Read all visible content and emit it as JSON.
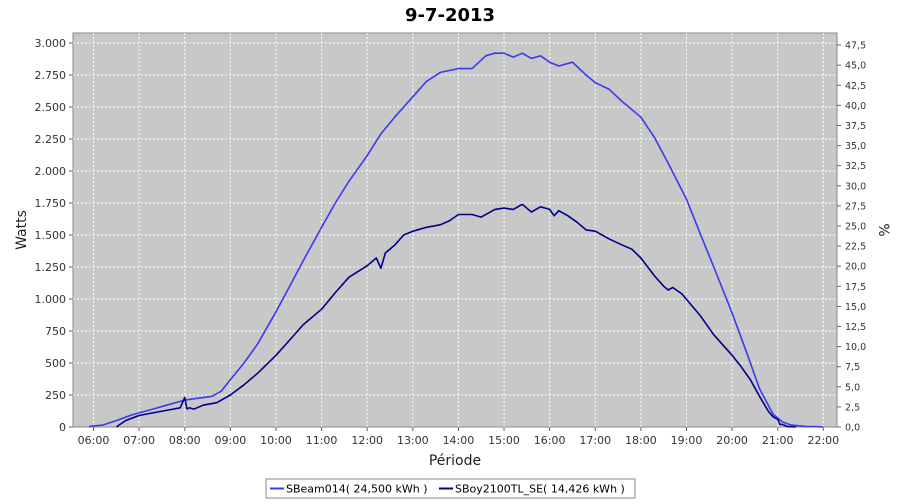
{
  "chart_data": {
    "type": "line",
    "title": "9-7-2013",
    "xlabel": "Période",
    "ylabel": "Watts",
    "y2label": "%",
    "x_ticks": [
      "06:00",
      "07:00",
      "08:00",
      "09:00",
      "10:00",
      "11:00",
      "12:00",
      "13:00",
      "14:00",
      "15:00",
      "16:00",
      "17:00",
      "18:00",
      "19:00",
      "20:00",
      "21:00",
      "22:00"
    ],
    "xlim_hours": [
      5.55,
      22.3
    ],
    "ylim": [
      0,
      3000
    ],
    "y_ticks": [
      0,
      250,
      500,
      750,
      1000,
      1250,
      1500,
      1750,
      2000,
      2250,
      2500,
      2750,
      3000
    ],
    "y_tick_labels": [
      "0",
      "250",
      "500",
      "750",
      "1.000",
      "1.250",
      "1.500",
      "1.750",
      "2.000",
      "2.250",
      "2.500",
      "2.750",
      "3.000"
    ],
    "y2lim": [
      0,
      49
    ],
    "y2_ticks": [
      0,
      2.5,
      5,
      7.5,
      10,
      12.5,
      15,
      17.5,
      20,
      22.5,
      25,
      27.5,
      30,
      32.5,
      35,
      37.5,
      40,
      42.5,
      45,
      47.5
    ],
    "y2_tick_labels": [
      "0,0",
      "2,5",
      "5,0",
      "7,5",
      "10,0",
      "12,5",
      "15,0",
      "17,5",
      "20,0",
      "22,5",
      "25,0",
      "27,5",
      "30,0",
      "32,5",
      "35,0",
      "37,5",
      "40,0",
      "42,5",
      "45,0",
      "47,5"
    ],
    "grid": true,
    "legend_position": "bottom",
    "series": [
      {
        "name": "SBeam014( 24,500 kWh )",
        "color": "#3a3aee",
        "x": [
          5.9,
          6.2,
          6.5,
          6.8,
          7.0,
          7.3,
          7.6,
          8.0,
          8.3,
          8.6,
          8.8,
          9.0,
          9.3,
          9.6,
          10.0,
          10.3,
          10.6,
          11.0,
          11.3,
          11.6,
          12.0,
          12.3,
          12.6,
          13.0,
          13.3,
          13.6,
          14.0,
          14.3,
          14.6,
          14.8,
          15.0,
          15.2,
          15.4,
          15.6,
          15.8,
          16.0,
          16.2,
          16.5,
          16.8,
          17.0,
          17.3,
          17.6,
          18.0,
          18.3,
          18.6,
          19.0,
          19.3,
          19.6,
          20.0,
          20.3,
          20.6,
          20.9,
          21.1,
          21.3,
          21.6,
          21.9,
          22.0
        ],
        "y": [
          5,
          15,
          50,
          90,
          110,
          140,
          170,
          210,
          225,
          240,
          280,
          370,
          500,
          650,
          900,
          1100,
          1300,
          1560,
          1750,
          1920,
          2120,
          2290,
          2420,
          2580,
          2700,
          2770,
          2800,
          2800,
          2900,
          2920,
          2920,
          2890,
          2920,
          2880,
          2900,
          2850,
          2820,
          2850,
          2750,
          2690,
          2640,
          2540,
          2420,
          2260,
          2060,
          1780,
          1510,
          1250,
          890,
          600,
          300,
          100,
          40,
          15,
          5,
          2,
          0
        ]
      },
      {
        "name": "SBoy2100TL_SE( 14,426 kWh )",
        "color": "#00008b",
        "x": [
          6.5,
          6.7,
          7.0,
          7.3,
          7.6,
          7.9,
          8.0,
          8.05,
          8.1,
          8.2,
          8.4,
          8.7,
          9.0,
          9.3,
          9.6,
          10.0,
          10.3,
          10.6,
          11.0,
          11.3,
          11.6,
          12.0,
          12.2,
          12.3,
          12.4,
          12.6,
          12.8,
          13.0,
          13.3,
          13.6,
          13.8,
          14.0,
          14.3,
          14.5,
          14.8,
          15.0,
          15.2,
          15.4,
          15.6,
          15.8,
          16.0,
          16.1,
          16.2,
          16.4,
          16.6,
          16.8,
          17.0,
          17.3,
          17.6,
          17.8,
          18.0,
          18.3,
          18.5,
          18.6,
          18.7,
          18.9,
          19.3,
          19.6,
          20.0,
          20.2,
          20.4,
          20.6,
          20.8,
          20.9,
          21.0,
          21.05,
          21.1,
          21.2,
          21.4
        ],
        "y": [
          0,
          50,
          90,
          110,
          130,
          150,
          230,
          140,
          150,
          140,
          170,
          190,
          250,
          330,
          420,
          560,
          680,
          800,
          920,
          1050,
          1170,
          1260,
          1320,
          1240,
          1360,
          1420,
          1500,
          1530,
          1560,
          1580,
          1610,
          1660,
          1660,
          1640,
          1700,
          1710,
          1700,
          1740,
          1680,
          1720,
          1700,
          1650,
          1690,
          1650,
          1600,
          1540,
          1530,
          1470,
          1420,
          1390,
          1320,
          1180,
          1100,
          1070,
          1090,
          1040,
          870,
          720,
          560,
          470,
          370,
          240,
          120,
          80,
          60,
          20,
          20,
          5,
          0
        ]
      }
    ]
  }
}
